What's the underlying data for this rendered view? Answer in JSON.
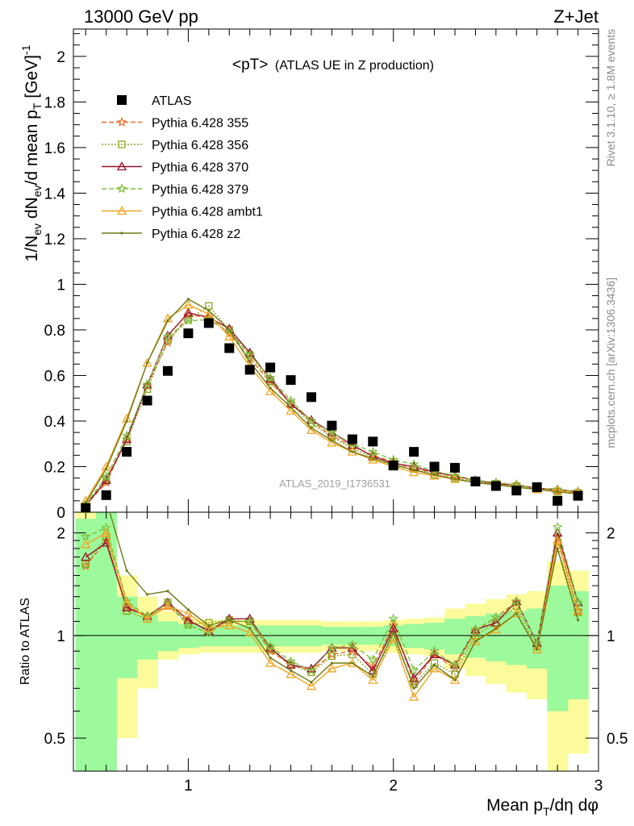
{
  "header": {
    "left": "13000 GeV pp",
    "right": "Z+Jet"
  },
  "side_labels": {
    "rivet": "Rivet 3.1.10, ≥ 1.8M events",
    "mcplots": "mcplots.cern.ch [arXiv:1306.3436]"
  },
  "plot_title": {
    "main": "<pT>",
    "sub": "(ATLAS UE in Z production)"
  },
  "watermark": "ATLAS_2019_I1736531",
  "ratio_ylabel": "Ratio to ATLAS",
  "colors": {
    "data": "#000000",
    "p355": "#ee6f2b",
    "p356": "#8aa71b",
    "p370": "#99142f",
    "p379": "#7ec23f",
    "ambt1": "#f2a521",
    "z2": "#707a14",
    "band_inner": "#9cf99c",
    "band_outer": "#fbfb9c"
  },
  "chart_data": {
    "type": "scatter",
    "x": [
      0.5,
      0.6,
      0.7,
      0.8,
      0.9,
      1.0,
      1.1,
      1.2,
      1.3,
      1.4,
      1.5,
      1.6,
      1.7,
      1.8,
      1.9,
      2.0,
      2.1,
      2.2,
      2.3,
      2.4,
      2.5,
      2.6,
      2.7,
      2.8,
      2.9
    ],
    "xlabel": "Mean p_T/dη dφ",
    "ylabel": "1/N_ev dN_ev/d mean p_T [GeV]^-1",
    "xlim": [
      0.44,
      3.0
    ],
    "ylim": [
      0,
      2.12
    ],
    "xticks": [
      1,
      2,
      3
    ],
    "yticks": [
      0,
      0.2,
      0.4,
      0.6,
      0.8,
      1,
      1.2,
      1.4,
      1.6,
      1.8,
      2
    ],
    "series": [
      {
        "name": "ATLAS",
        "key": "data",
        "marker": "square",
        "values": [
          0.018,
          0.075,
          0.265,
          0.49,
          0.62,
          0.785,
          0.83,
          0.72,
          0.625,
          0.635,
          0.58,
          0.505,
          0.38,
          0.32,
          0.31,
          0.205,
          0.265,
          0.2,
          0.195,
          0.135,
          0.115,
          0.095,
          0.11,
          0.05,
          0.072
        ]
      },
      {
        "name": "Pythia 6.428 355",
        "key": "p355",
        "marker": "star",
        "dash": "6,3",
        "values": [
          0.03,
          0.13,
          0.32,
          0.555,
          0.745,
          0.865,
          0.855,
          0.785,
          0.675,
          0.57,
          0.475,
          0.4,
          0.335,
          0.29,
          0.25,
          0.22,
          0.19,
          0.175,
          0.155,
          0.14,
          0.13,
          0.12,
          0.105,
          0.097,
          0.085
        ]
      },
      {
        "name": "Pythia 6.428 356",
        "key": "p356",
        "marker": "square-open",
        "dash": "2,2",
        "values": [
          0.03,
          0.145,
          0.31,
          0.54,
          0.755,
          0.845,
          0.905,
          0.8,
          0.69,
          0.575,
          0.475,
          0.39,
          0.33,
          0.28,
          0.24,
          0.2,
          0.19,
          0.165,
          0.15,
          0.135,
          0.125,
          0.115,
          0.1,
          0.09,
          0.085
        ]
      },
      {
        "name": "Pythia 6.428 370",
        "key": "p370",
        "marker": "triangle-open",
        "dash": "",
        "values": [
          0.03,
          0.14,
          0.32,
          0.56,
          0.775,
          0.875,
          0.855,
          0.805,
          0.7,
          0.585,
          0.475,
          0.405,
          0.35,
          0.295,
          0.245,
          0.215,
          0.2,
          0.175,
          0.16,
          0.14,
          0.125,
          0.12,
          0.105,
          0.1,
          0.09
        ]
      },
      {
        "name": "Pythia 6.428 379",
        "key": "p379",
        "marker": "star",
        "dash": "6,3",
        "values": [
          0.035,
          0.155,
          0.335,
          0.56,
          0.77,
          0.84,
          0.845,
          0.79,
          0.69,
          0.59,
          0.49,
          0.4,
          0.35,
          0.3,
          0.265,
          0.23,
          0.21,
          0.18,
          0.16,
          0.14,
          0.13,
          0.12,
          0.105,
          0.1,
          0.09
        ]
      },
      {
        "name": "Pythia 6.428 ambt1",
        "key": "ambt1",
        "marker": "triangle-open",
        "dash": "",
        "values": [
          0.05,
          0.2,
          0.41,
          0.655,
          0.85,
          0.91,
          0.87,
          0.77,
          0.64,
          0.53,
          0.445,
          0.36,
          0.305,
          0.265,
          0.23,
          0.2,
          0.175,
          0.16,
          0.145,
          0.13,
          0.12,
          0.11,
          0.1,
          0.095,
          0.085
        ]
      },
      {
        "name": "Pythia 6.428 z2",
        "key": "z2",
        "marker": "dot",
        "dash": "",
        "values": [
          0.04,
          0.19,
          0.4,
          0.655,
          0.84,
          0.935,
          0.885,
          0.8,
          0.66,
          0.545,
          0.46,
          0.37,
          0.315,
          0.265,
          0.235,
          0.21,
          0.185,
          0.165,
          0.145,
          0.13,
          0.12,
          0.11,
          0.1,
          0.09,
          0.08
        ]
      }
    ],
    "ratio": {
      "ylim": [
        0.4,
        2.3
      ],
      "yscale": "log",
      "yticks": [
        0.5,
        1,
        2
      ],
      "band_outer": {
        "lo": [
          0.3,
          0.3,
          0.5,
          0.7,
          0.85,
          0.88,
          0.89,
          0.89,
          0.89,
          0.89,
          0.89,
          0.89,
          0.9,
          0.9,
          0.9,
          0.89,
          0.88,
          0.87,
          0.8,
          0.76,
          0.72,
          0.68,
          0.65,
          0.35,
          0.45
        ],
        "hi": [
          2.3,
          2.3,
          1.5,
          1.3,
          1.18,
          1.12,
          1.11,
          1.11,
          1.11,
          1.11,
          1.11,
          1.11,
          1.1,
          1.1,
          1.1,
          1.11,
          1.12,
          1.13,
          1.2,
          1.24,
          1.28,
          1.32,
          1.35,
          1.65,
          1.55
        ]
      },
      "band_inner": {
        "lo": [
          0.3,
          0.4,
          0.75,
          0.85,
          0.9,
          0.92,
          0.93,
          0.93,
          0.93,
          0.93,
          0.93,
          0.93,
          0.94,
          0.94,
          0.94,
          0.93,
          0.92,
          0.91,
          0.88,
          0.86,
          0.84,
          0.82,
          0.8,
          0.6,
          0.65
        ],
        "hi": [
          2.2,
          2.3,
          1.3,
          1.15,
          1.1,
          1.08,
          1.07,
          1.07,
          1.07,
          1.07,
          1.07,
          1.07,
          1.06,
          1.06,
          1.06,
          1.07,
          1.08,
          1.09,
          1.12,
          1.14,
          1.16,
          1.18,
          1.2,
          1.4,
          1.35
        ]
      },
      "series": [
        {
          "key": "p355",
          "values": [
            1.6,
            1.9,
            1.2,
            1.14,
            1.22,
            1.1,
            1.04,
            1.1,
            1.1,
            0.9,
            0.82,
            0.79,
            0.88,
            0.9,
            0.81,
            1.07,
            0.73,
            0.88,
            0.8,
            1.03,
            1.13,
            1.25,
            0.95,
            1.95,
            1.18
          ]
        },
        {
          "key": "p356",
          "values": [
            1.62,
            1.95,
            1.18,
            1.12,
            1.25,
            1.08,
            1.09,
            1.11,
            1.1,
            0.91,
            0.82,
            0.78,
            0.87,
            0.88,
            0.77,
            0.98,
            0.72,
            0.83,
            0.77,
            1.0,
            1.09,
            1.22,
            0.91,
            1.8,
            1.17
          ]
        },
        {
          "key": "p370",
          "values": [
            1.7,
            1.87,
            1.21,
            1.14,
            1.25,
            1.11,
            1.03,
            1.12,
            1.12,
            0.92,
            0.82,
            0.8,
            0.92,
            0.92,
            0.79,
            1.05,
            0.75,
            0.88,
            0.82,
            1.04,
            1.09,
            1.26,
            0.95,
            2.0,
            1.25
          ]
        },
        {
          "key": "p379",
          "values": [
            1.95,
            2.07,
            1.26,
            1.14,
            1.24,
            1.07,
            1.02,
            1.1,
            1.1,
            0.93,
            0.84,
            0.79,
            0.92,
            0.94,
            0.85,
            1.12,
            0.79,
            0.9,
            0.82,
            1.04,
            1.13,
            1.26,
            0.95,
            2.08,
            1.25
          ]
        },
        {
          "key": "ambt1",
          "values": [
            1.85,
            2.0,
            1.25,
            1.12,
            1.22,
            1.16,
            1.05,
            1.07,
            1.02,
            0.83,
            0.77,
            0.71,
            0.8,
            0.83,
            0.74,
            0.98,
            0.66,
            0.8,
            0.74,
            0.96,
            1.04,
            1.16,
            0.91,
            1.9,
            1.18
          ]
        },
        {
          "key": "z2",
          "values": [
            2.3,
            2.5,
            1.55,
            1.32,
            1.35,
            1.19,
            1.07,
            1.11,
            1.05,
            0.86,
            0.79,
            0.73,
            0.83,
            0.83,
            0.76,
            1.02,
            0.7,
            0.82,
            0.74,
            0.96,
            1.05,
            1.16,
            0.91,
            1.8,
            1.11
          ]
        }
      ]
    }
  }
}
